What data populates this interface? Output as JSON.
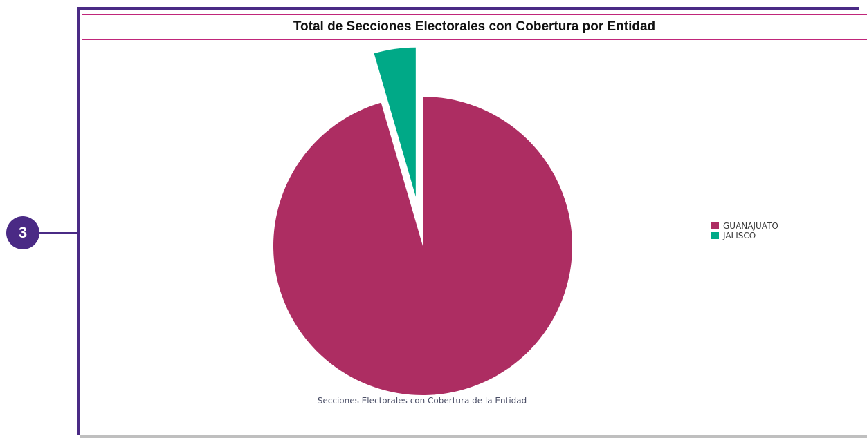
{
  "callout": {
    "number": "3"
  },
  "chart_data": {
    "type": "pie",
    "title": "Total de Secciones Electorales con Cobertura por Entidad",
    "caption": "Secciones Electorales con Cobertura de la Entidad",
    "slices": [
      {
        "label": "GUANAJUATO",
        "value": 95.5,
        "color": "#ad2d62"
      },
      {
        "label": "JALISCO",
        "value": 4.5,
        "color": "#00a987",
        "exploded": true
      }
    ],
    "legend_position": "right"
  },
  "colors": {
    "frame": "#4a2a85",
    "title_rule": "#c0267a"
  }
}
